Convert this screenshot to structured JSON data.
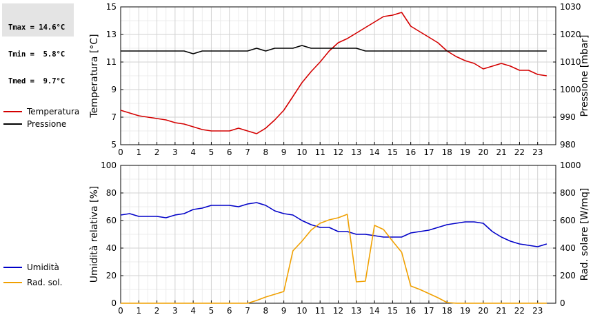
{
  "stats": {
    "tmax": "Tmax = 14.6°C",
    "tmin": "Tmin =  5.8°C",
    "tmed": "Tmed =  9.7°C"
  },
  "legend": {
    "top": [
      {
        "label": "Temperatura",
        "color": "#d40000"
      },
      {
        "label": "Pressione",
        "color": "#000000"
      }
    ],
    "bottom": [
      {
        "label": "Umidità",
        "color": "#0000c8"
      },
      {
        "label": "Rad. sol.",
        "color": "#f0a000"
      }
    ]
  },
  "chart_data": [
    {
      "type": "line",
      "ylabel": "Temperatura [°C]",
      "y2label": "Pressione [mbar]",
      "xlim": [
        0,
        24
      ],
      "xticks": [
        "0",
        "1",
        "2",
        "3",
        "4",
        "5",
        "6",
        "7",
        "8",
        "9",
        "10",
        "11",
        "12",
        "13",
        "14",
        "15",
        "16",
        "17",
        "18",
        "19",
        "20",
        "21",
        "22",
        "23"
      ],
      "ylim": [
        5,
        15
      ],
      "yticks": [
        "5",
        "7",
        "9",
        "11",
        "13",
        "15"
      ],
      "y2lim": [
        980,
        1030
      ],
      "y2ticks": [
        "980",
        "990",
        "1000",
        "1010",
        "1020",
        "1030"
      ],
      "grid": true,
      "series": [
        {
          "name": "Temperatura",
          "axis": "left",
          "color": "#d40000",
          "x": [
            0,
            0.5,
            1,
            1.5,
            2,
            2.5,
            3,
            3.5,
            4,
            4.5,
            5,
            5.5,
            6,
            6.5,
            7,
            7.5,
            8,
            8.5,
            9,
            9.5,
            10,
            10.5,
            11,
            11.5,
            12,
            12.5,
            13,
            13.5,
            14,
            14.5,
            15,
            15.5,
            16,
            16.5,
            17,
            17.5,
            18,
            18.5,
            19,
            19.5,
            20,
            20.5,
            21,
            21.5,
            22,
            22.5,
            23,
            23.5
          ],
          "y": [
            7.5,
            7.3,
            7.1,
            7.0,
            6.9,
            6.8,
            6.6,
            6.5,
            6.3,
            6.1,
            6.0,
            6.0,
            6.0,
            6.2,
            6.0,
            5.8,
            6.2,
            6.8,
            7.5,
            8.5,
            9.5,
            10.3,
            11.0,
            11.8,
            12.4,
            12.7,
            13.1,
            13.5,
            13.9,
            14.3,
            14.4,
            14.6,
            13.6,
            13.2,
            12.8,
            12.4,
            11.8,
            11.4,
            11.1,
            10.9,
            10.5,
            10.7,
            10.9,
            10.7,
            10.4,
            10.4,
            10.1,
            10.0
          ]
        },
        {
          "name": "Pressione",
          "axis": "right",
          "color": "#000000",
          "x": [
            0,
            0.5,
            1,
            1.5,
            2,
            2.5,
            3,
            3.5,
            4,
            4.5,
            5,
            5.5,
            6,
            6.5,
            7,
            7.5,
            8,
            8.5,
            9,
            9.5,
            10,
            10.5,
            11,
            11.5,
            12,
            12.5,
            13,
            13.5,
            14,
            14.5,
            15,
            15.5,
            16,
            16.5,
            17,
            17.5,
            18,
            18.5,
            19,
            19.5,
            20,
            20.5,
            21,
            21.5,
            22,
            22.5,
            23,
            23.5
          ],
          "y": [
            1014,
            1014,
            1014,
            1014,
            1014,
            1014,
            1014,
            1014,
            1013,
            1014,
            1014,
            1014,
            1014,
            1014,
            1014,
            1015,
            1014,
            1015,
            1015,
            1015,
            1016,
            1015,
            1015,
            1015,
            1015,
            1015,
            1015,
            1014,
            1014,
            1014,
            1014,
            1014,
            1014,
            1014,
            1014,
            1014,
            1014,
            1014,
            1014,
            1014,
            1014,
            1014,
            1014,
            1014,
            1014,
            1014,
            1014,
            1014
          ]
        }
      ]
    },
    {
      "type": "line",
      "ylabel": "Umidità relativa [%]",
      "y2label": "Rad. solare [W/mq]",
      "xlim": [
        0,
        24
      ],
      "xticks": [
        "0",
        "1",
        "2",
        "3",
        "4",
        "5",
        "6",
        "7",
        "8",
        "9",
        "10",
        "11",
        "12",
        "13",
        "14",
        "15",
        "16",
        "17",
        "18",
        "19",
        "20",
        "21",
        "22",
        "23"
      ],
      "ylim": [
        0,
        100
      ],
      "yticks": [
        "0",
        "20",
        "40",
        "60",
        "80",
        "100"
      ],
      "y2lim": [
        0,
        1000
      ],
      "y2ticks": [
        "0",
        "200",
        "400",
        "600",
        "800",
        "1000"
      ],
      "grid": true,
      "series": [
        {
          "name": "Umidità",
          "axis": "left",
          "color": "#0000c8",
          "x": [
            0,
            0.5,
            1,
            1.5,
            2,
            2.5,
            3,
            3.5,
            4,
            4.5,
            5,
            5.5,
            6,
            6.5,
            7,
            7.5,
            8,
            8.5,
            9,
            9.5,
            10,
            10.5,
            11,
            11.5,
            12,
            12.5,
            13,
            13.5,
            14,
            14.5,
            15,
            15.5,
            16,
            16.5,
            17,
            17.5,
            18,
            18.5,
            19,
            19.5,
            20,
            20.5,
            21,
            21.5,
            22,
            22.5,
            23,
            23.5
          ],
          "y": [
            64,
            65,
            63,
            63,
            63,
            62,
            64,
            65,
            68,
            69,
            71,
            71,
            71,
            70,
            72,
            73,
            71,
            67,
            65,
            64,
            60,
            57,
            55,
            55,
            52,
            52,
            50,
            50,
            49,
            48,
            48,
            48,
            51,
            52,
            53,
            55,
            57,
            58,
            59,
            59,
            58,
            52,
            48,
            45,
            43,
            42,
            41,
            43
          ]
        },
        {
          "name": "Rad. sol.",
          "axis": "right",
          "color": "#f0a000",
          "x": [
            0,
            1,
            2,
            3,
            4,
            5,
            6,
            7,
            7.5,
            8,
            8.5,
            9,
            9.5,
            10,
            10.5,
            11,
            11.5,
            12,
            12.5,
            13,
            13.5,
            14,
            14.5,
            15,
            15.5,
            16,
            16.5,
            17,
            17.5,
            18,
            18.5,
            19,
            20,
            21,
            22,
            23,
            23.5
          ],
          "y": [
            0,
            0,
            0,
            0,
            0,
            0,
            0,
            0,
            20,
            45,
            65,
            85,
            380,
            450,
            530,
            580,
            605,
            620,
            645,
            155,
            160,
            565,
            535,
            450,
            370,
            125,
            100,
            70,
            40,
            5,
            0,
            0,
            0,
            0,
            0,
            0,
            0
          ]
        }
      ]
    }
  ]
}
